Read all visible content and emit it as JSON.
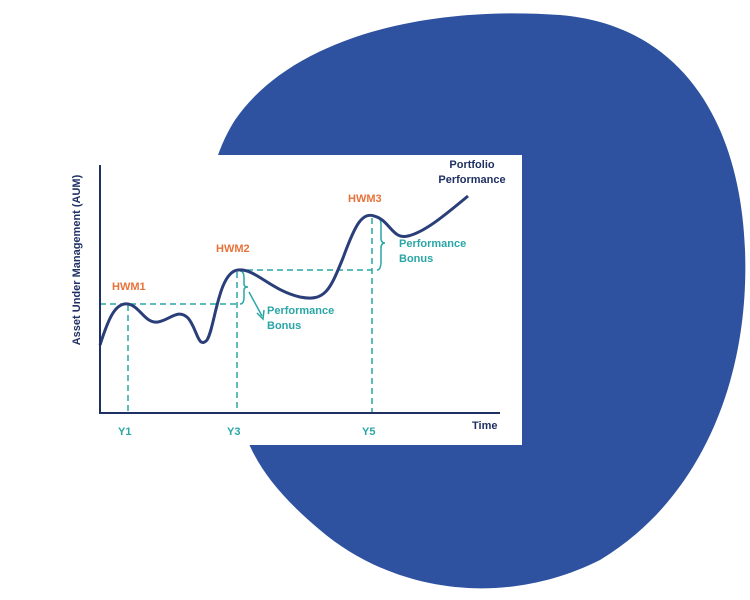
{
  "axes": {
    "y_label": "Asset Under Management (AUM)",
    "x_label": "Time"
  },
  "x_markers": [
    "Y1",
    "Y3",
    "Y5"
  ],
  "high_water_marks": [
    "HWM1",
    "HWM2",
    "HWM3"
  ],
  "series_label": "Portfolio Performance",
  "bonus_labels": [
    "Performance Bonus",
    "Performance Bonus"
  ]
}
